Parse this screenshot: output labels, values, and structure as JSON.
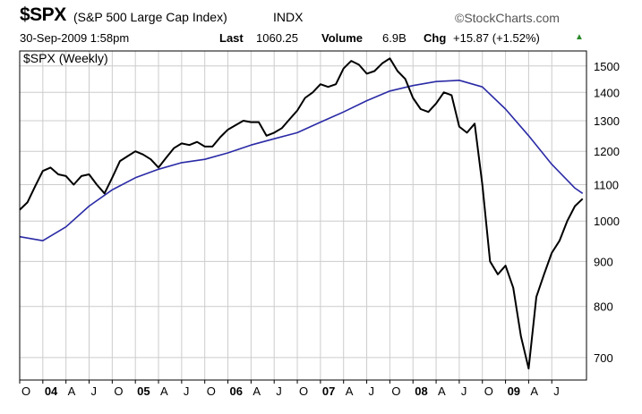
{
  "header": {
    "symbol": "$SPX",
    "name": "(S&P 500 Large Cap Index)",
    "exchange": "INDX",
    "brand": "©StockCharts.com",
    "datetime": "30-Sep-2009 1:58pm",
    "last_label": "Last",
    "last_value": "1060.25",
    "volume_label": "Volume",
    "volume_value": "6.9B",
    "chg_label": "Chg",
    "chg_value": "+15.87 (+1.52%)",
    "chg_arrow": "▲",
    "up_color": "#2a8a2a"
  },
  "chart_data": {
    "type": "line",
    "title": "$SPX (Weekly)",
    "x_range": [
      "2003-10",
      "2009-09"
    ],
    "ylim": [
      660,
      1560
    ],
    "y_scale": "log",
    "y_ticks": [
      700,
      800,
      900,
      1000,
      1100,
      1200,
      1300,
      1400,
      1500
    ],
    "x_ticks": [
      {
        "label": "O",
        "t": 0,
        "bold": false
      },
      {
        "label": "04",
        "t": 3,
        "bold": true
      },
      {
        "label": "A",
        "t": 6,
        "bold": false
      },
      {
        "label": "J",
        "t": 9,
        "bold": false
      },
      {
        "label": "O",
        "t": 12,
        "bold": false
      },
      {
        "label": "05",
        "t": 15,
        "bold": true
      },
      {
        "label": "A",
        "t": 18,
        "bold": false
      },
      {
        "label": "J",
        "t": 21,
        "bold": false
      },
      {
        "label": "O",
        "t": 24,
        "bold": false
      },
      {
        "label": "06",
        "t": 27,
        "bold": true
      },
      {
        "label": "A",
        "t": 30,
        "bold": false
      },
      {
        "label": "J",
        "t": 33,
        "bold": false
      },
      {
        "label": "O",
        "t": 36,
        "bold": false
      },
      {
        "label": "07",
        "t": 39,
        "bold": true
      },
      {
        "label": "A",
        "t": 42,
        "bold": false
      },
      {
        "label": "J",
        "t": 45,
        "bold": false
      },
      {
        "label": "O",
        "t": 48,
        "bold": false
      },
      {
        "label": "08",
        "t": 51,
        "bold": true
      },
      {
        "label": "A",
        "t": 54,
        "bold": false
      },
      {
        "label": "J",
        "t": 57,
        "bold": false
      },
      {
        "label": "O",
        "t": 60,
        "bold": false
      },
      {
        "label": "09",
        "t": 63,
        "bold": true
      },
      {
        "label": "A",
        "t": 66,
        "bold": false
      },
      {
        "label": "J",
        "t": 69,
        "bold": false
      }
    ],
    "grid": true,
    "series": [
      {
        "color": "#000000",
        "points": [
          [
            0,
            1030
          ],
          [
            1,
            1050
          ],
          [
            2,
            1095
          ],
          [
            3,
            1140
          ],
          [
            4,
            1150
          ],
          [
            5,
            1130
          ],
          [
            6,
            1125
          ],
          [
            7,
            1100
          ],
          [
            8,
            1125
          ],
          [
            9,
            1130
          ],
          [
            10,
            1100
          ],
          [
            11,
            1075
          ],
          [
            12,
            1120
          ],
          [
            13,
            1170
          ],
          [
            14,
            1185
          ],
          [
            15,
            1200
          ],
          [
            16,
            1190
          ],
          [
            17,
            1175
          ],
          [
            18,
            1150
          ],
          [
            19,
            1180
          ],
          [
            20,
            1210
          ],
          [
            21,
            1225
          ],
          [
            22,
            1220
          ],
          [
            23,
            1230
          ],
          [
            24,
            1215
          ],
          [
            25,
            1215
          ],
          [
            26,
            1245
          ],
          [
            27,
            1270
          ],
          [
            28,
            1285
          ],
          [
            29,
            1300
          ],
          [
            30,
            1295
          ],
          [
            31,
            1295
          ],
          [
            32,
            1250
          ],
          [
            33,
            1260
          ],
          [
            34,
            1275
          ],
          [
            35,
            1305
          ],
          [
            36,
            1335
          ],
          [
            37,
            1380
          ],
          [
            38,
            1400
          ],
          [
            39,
            1430
          ],
          [
            40,
            1420
          ],
          [
            41,
            1430
          ],
          [
            42,
            1490
          ],
          [
            43,
            1520
          ],
          [
            44,
            1505
          ],
          [
            45,
            1470
          ],
          [
            46,
            1480
          ],
          [
            47,
            1510
          ],
          [
            48,
            1530
          ],
          [
            49,
            1480
          ],
          [
            50,
            1450
          ],
          [
            51,
            1380
          ],
          [
            52,
            1340
          ],
          [
            53,
            1330
          ],
          [
            54,
            1360
          ],
          [
            55,
            1400
          ],
          [
            56,
            1390
          ],
          [
            57,
            1280
          ],
          [
            58,
            1260
          ],
          [
            59,
            1290
          ],
          [
            60,
            1100
          ],
          [
            61,
            900
          ],
          [
            62,
            870
          ],
          [
            63,
            890
          ],
          [
            64,
            840
          ],
          [
            65,
            740
          ],
          [
            66,
            680
          ],
          [
            67,
            820
          ],
          [
            68,
            870
          ],
          [
            69,
            920
          ],
          [
            70,
            950
          ],
          [
            71,
            1000
          ],
          [
            72,
            1040
          ],
          [
            73,
            1060
          ]
        ]
      },
      {
        "color": "#2a2aa6",
        "points": [
          [
            0,
            960
          ],
          [
            3,
            950
          ],
          [
            6,
            985
          ],
          [
            9,
            1040
          ],
          [
            12,
            1085
          ],
          [
            15,
            1120
          ],
          [
            18,
            1145
          ],
          [
            21,
            1165
          ],
          [
            24,
            1175
          ],
          [
            27,
            1195
          ],
          [
            30,
            1220
          ],
          [
            33,
            1240
          ],
          [
            36,
            1260
          ],
          [
            39,
            1295
          ],
          [
            42,
            1330
          ],
          [
            45,
            1370
          ],
          [
            48,
            1405
          ],
          [
            51,
            1425
          ],
          [
            54,
            1440
          ],
          [
            57,
            1445
          ],
          [
            60,
            1420
          ],
          [
            63,
            1340
          ],
          [
            66,
            1250
          ],
          [
            69,
            1160
          ],
          [
            72,
            1090
          ],
          [
            73,
            1075
          ]
        ]
      }
    ]
  }
}
